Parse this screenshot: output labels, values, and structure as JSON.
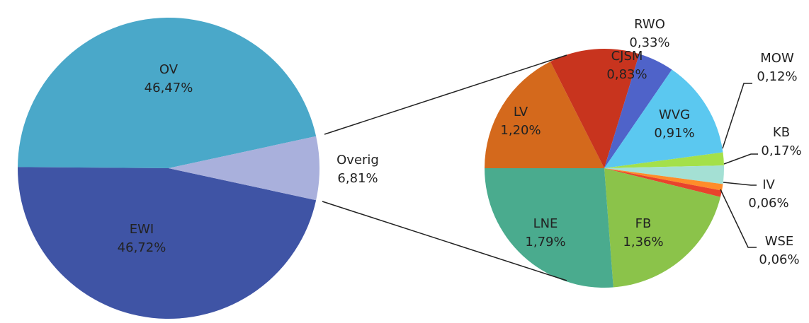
{
  "chart_data": [
    {
      "type": "pie",
      "categories": [
        "OV",
        "EWI",
        "Overig"
      ],
      "values": [
        46.47,
        46.72,
        6.81
      ],
      "value_labels": [
        "46,47%",
        "46,72%",
        "6,81%"
      ],
      "colors": [
        "#4aa8c9",
        "#3f54a5",
        "#a9b0dc"
      ]
    },
    {
      "type": "pie",
      "categories": [
        "LV",
        "CJSM",
        "RWO",
        "WVG",
        "MOW",
        "KB",
        "IV",
        "WSE",
        "FB",
        "LNE"
      ],
      "values": [
        1.2,
        0.83,
        0.33,
        0.91,
        0.12,
        0.17,
        0.06,
        0.06,
        1.36,
        1.79
      ],
      "value_labels": [
        "1,20%",
        "0,83%",
        "0,33%",
        "0,91%",
        "0,12%",
        "0,17%",
        "0,06%",
        "0,06%",
        "1,36%",
        "1,79%"
      ],
      "colors": [
        "#d4691c",
        "#c8341e",
        "#4f63c9",
        "#5bc8f0",
        "#a4e04a",
        "#a4e0d4",
        "#ff8c2a",
        "#e8432c",
        "#8bc34a",
        "#4aab8e"
      ]
    }
  ]
}
